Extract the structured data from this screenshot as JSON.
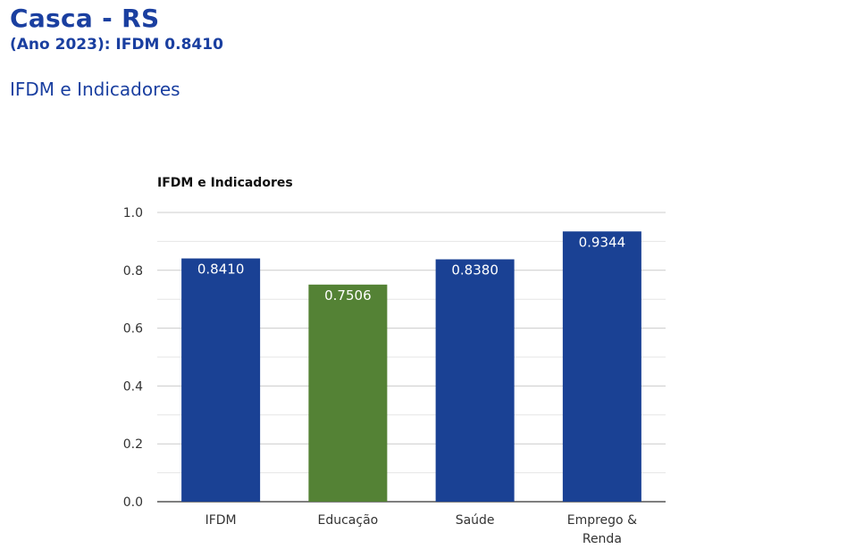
{
  "header": {
    "title": "Casca - RS",
    "subtitle": "(Ano 2023): IFDM 0.8410",
    "section_title": "IFDM e Indicadores"
  },
  "colors": {
    "brand": "#1a3fa0",
    "bar_default": "#1a4194",
    "bar_highlight": "#548235",
    "grid": "#cccccc",
    "minor_grid": "#e6e6e6",
    "axis": "#333333"
  },
  "chart_data": {
    "type": "bar",
    "title": "IFDM e Indicadores",
    "xlabel": "",
    "ylabel": "",
    "categories": [
      "IFDM",
      "Educação",
      "Saúde",
      "Emprego & Renda"
    ],
    "category_lines": [
      [
        "IFDM"
      ],
      [
        "Educação"
      ],
      [
        "Saúde"
      ],
      [
        "Emprego &",
        "Renda"
      ]
    ],
    "values": [
      0.841,
      0.7506,
      0.838,
      0.9344
    ],
    "value_labels": [
      "0.8410",
      "0.7506",
      "0.8380",
      "0.9344"
    ],
    "bar_colors": [
      "#1a4194",
      "#548235",
      "#1a4194",
      "#1a4194"
    ],
    "ylim": [
      0,
      1.0
    ],
    "yticks": [
      0.0,
      0.2,
      0.4,
      0.6,
      0.8,
      1.0
    ],
    "ytick_labels": [
      "0.0",
      "0.2",
      "0.4",
      "0.6",
      "0.8",
      "1.0"
    ],
    "grid": true,
    "legend": "none"
  }
}
